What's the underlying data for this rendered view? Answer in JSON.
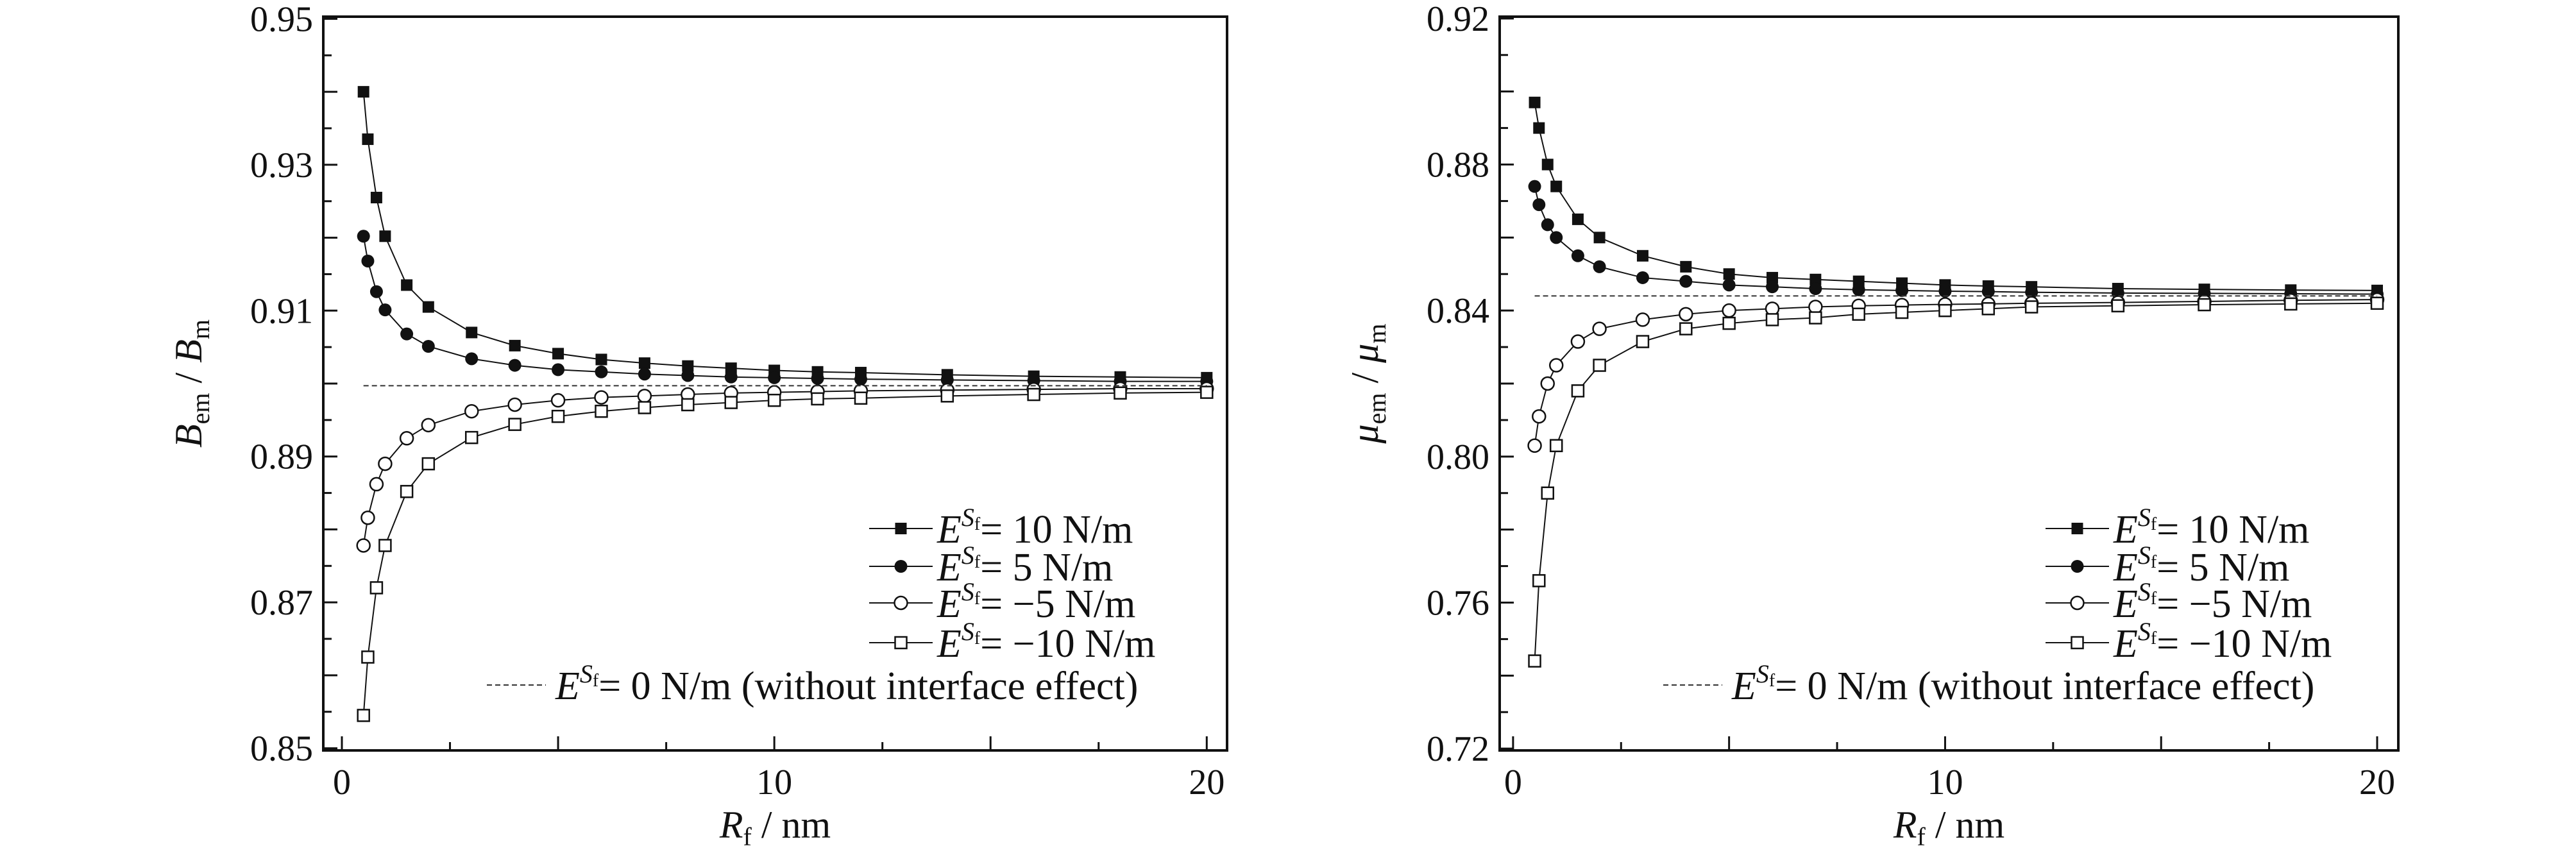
{
  "chart_data": [
    {
      "type": "line",
      "id": "bulk",
      "title": "",
      "ylabel": {
        "main": "B",
        "sub": "em",
        "sep": " / ",
        "main2": "B",
        "sub2": "m"
      },
      "xlabel": {
        "main": "R",
        "sub": "f",
        "rest": " / nm"
      },
      "xlim": [
        -0.43,
        20.47
      ],
      "ylim": [
        0.8497,
        0.9503
      ],
      "xticks": {
        "labels": [
          "0",
          "10",
          "20"
        ],
        "values": [
          0,
          10,
          20
        ],
        "major_step": 5,
        "minor_step": 2.5
      },
      "yticks": {
        "labels": [
          "0.85",
          "0.87",
          "0.89",
          "0.91",
          "0.93",
          "0.95"
        ],
        "values": [
          0.85,
          0.87,
          0.89,
          0.91,
          0.93,
          0.95
        ],
        "major_step": 0.01,
        "minor_step": 0.005
      },
      "grid": false,
      "legend_placement": "bottom-right",
      "x": [
        0.5,
        0.6,
        0.8,
        1,
        1.5,
        2,
        3,
        4,
        5,
        6,
        7,
        8,
        9,
        10,
        11,
        12,
        14,
        16,
        18,
        20
      ],
      "series": [
        {
          "name": "= 10 N/m",
          "marker": "square-filled",
          "values": [
            0.94,
            0.9335,
            0.9255,
            0.9202,
            0.9135,
            0.9105,
            0.907,
            0.9052,
            0.9041,
            0.9033,
            0.9028,
            0.9024,
            0.9021,
            0.9018,
            0.9016,
            0.9015,
            0.9012,
            0.901,
            0.9009,
            0.9008
          ]
        },
        {
          "name": "= 5 N/m",
          "marker": "circle-filled",
          "values": [
            0.9202,
            0.9168,
            0.9126,
            0.9101,
            0.9068,
            0.9051,
            0.9034,
            0.9025,
            0.9019,
            0.9016,
            0.9013,
            0.9011,
            0.9009,
            0.9008,
            0.9007,
            0.9006,
            0.9005,
            0.9004,
            0.9003,
            0.9003
          ]
        },
        {
          "name": "= −5 N/m",
          "marker": "circle-open",
          "values": [
            0.8778,
            0.8816,
            0.8862,
            0.889,
            0.8925,
            0.8943,
            0.8962,
            0.8971,
            0.8977,
            0.8981,
            0.8983,
            0.8985,
            0.8987,
            0.8988,
            0.8989,
            0.899,
            0.8991,
            0.8992,
            0.8993,
            0.8993
          ]
        },
        {
          "name": "= −10 N/m",
          "marker": "square-open",
          "values": [
            0.8545,
            0.8625,
            0.872,
            0.8778,
            0.8852,
            0.889,
            0.8926,
            0.8944,
            0.8955,
            0.8962,
            0.8967,
            0.8971,
            0.8974,
            0.8977,
            0.8979,
            0.898,
            0.8983,
            0.8985,
            0.8987,
            0.8988
          ]
        },
        {
          "name": "= 0 N/m (without interface effect)",
          "marker": "dashed-line",
          "values": [
            0.8997,
            0.8997,
            0.8997,
            0.8997,
            0.8997,
            0.8997,
            0.8997,
            0.8997,
            0.8997,
            0.8997,
            0.8997,
            0.8997,
            0.8997,
            0.8997,
            0.8997,
            0.8997,
            0.8997,
            0.8997,
            0.8997,
            0.8997
          ]
        }
      ]
    },
    {
      "type": "line",
      "id": "shear",
      "title": "",
      "ylabel": {
        "main": "μ",
        "sub": "em",
        "sep": " / ",
        "main2": "μ",
        "sub2": "m"
      },
      "xlabel": {
        "main": "R",
        "sub": "f",
        "rest": " / nm"
      },
      "xlim": [
        -0.31,
        20.49
      ],
      "ylim": [
        0.7195,
        0.9205
      ],
      "xticks": {
        "labels": [
          "0",
          "10",
          "20"
        ],
        "values": [
          0,
          10,
          20
        ],
        "major_step": 5,
        "minor_step": 2.5
      },
      "yticks": {
        "labels": [
          "0.72",
          "0.76",
          "0.80",
          "0.84",
          "0.88",
          "0.92"
        ],
        "values": [
          0.72,
          0.76,
          0.8,
          0.84,
          0.88,
          0.92
        ],
        "major_step": 0.02,
        "minor_step": 0.01
      },
      "grid": false,
      "legend_placement": "bottom-right",
      "x": [
        0.5,
        0.6,
        0.8,
        1,
        1.5,
        2,
        3,
        4,
        5,
        6,
        7,
        8,
        9,
        10,
        11,
        12,
        14,
        16,
        18,
        20
      ],
      "series": [
        {
          "name": "= 10 N/m",
          "marker": "square-filled",
          "values": [
            0.897,
            0.89,
            0.88,
            0.874,
            0.865,
            0.86,
            0.855,
            0.852,
            0.85,
            0.849,
            0.8485,
            0.848,
            0.8475,
            0.847,
            0.8467,
            0.8465,
            0.846,
            0.8458,
            0.8456,
            0.8455
          ]
        },
        {
          "name": "= 5 N/m",
          "marker": "circle-filled",
          "values": [
            0.874,
            0.869,
            0.8635,
            0.86,
            0.855,
            0.852,
            0.849,
            0.848,
            0.847,
            0.8465,
            0.846,
            0.8457,
            0.8455,
            0.8453,
            0.8452,
            0.845,
            0.8448,
            0.8447,
            0.8446,
            0.8445
          ]
        },
        {
          "name": "= −5 N/m",
          "marker": "circle-open",
          "values": [
            0.803,
            0.811,
            0.82,
            0.825,
            0.8315,
            0.835,
            0.8375,
            0.839,
            0.84,
            0.8405,
            0.841,
            0.8413,
            0.8415,
            0.8417,
            0.8418,
            0.842,
            0.8422,
            0.8425,
            0.8428,
            0.843
          ]
        },
        {
          "name": "= −10 N/m",
          "marker": "square-open",
          "values": [
            0.744,
            0.766,
            0.79,
            0.803,
            0.818,
            0.825,
            0.8315,
            0.835,
            0.8365,
            0.8375,
            0.838,
            0.839,
            0.8395,
            0.84,
            0.8405,
            0.841,
            0.8413,
            0.8416,
            0.8418,
            0.842
          ]
        },
        {
          "name": "= 0 N/m (without interface effect)",
          "marker": "dashed-line",
          "values": [
            0.844,
            0.844,
            0.844,
            0.844,
            0.844,
            0.844,
            0.844,
            0.844,
            0.844,
            0.844,
            0.844,
            0.844,
            0.844,
            0.844,
            0.844,
            0.844,
            0.844,
            0.844,
            0.844,
            0.844
          ]
        }
      ]
    }
  ],
  "legend_symbol": {
    "base": "E",
    "sup": "S",
    "supsub": "f"
  }
}
